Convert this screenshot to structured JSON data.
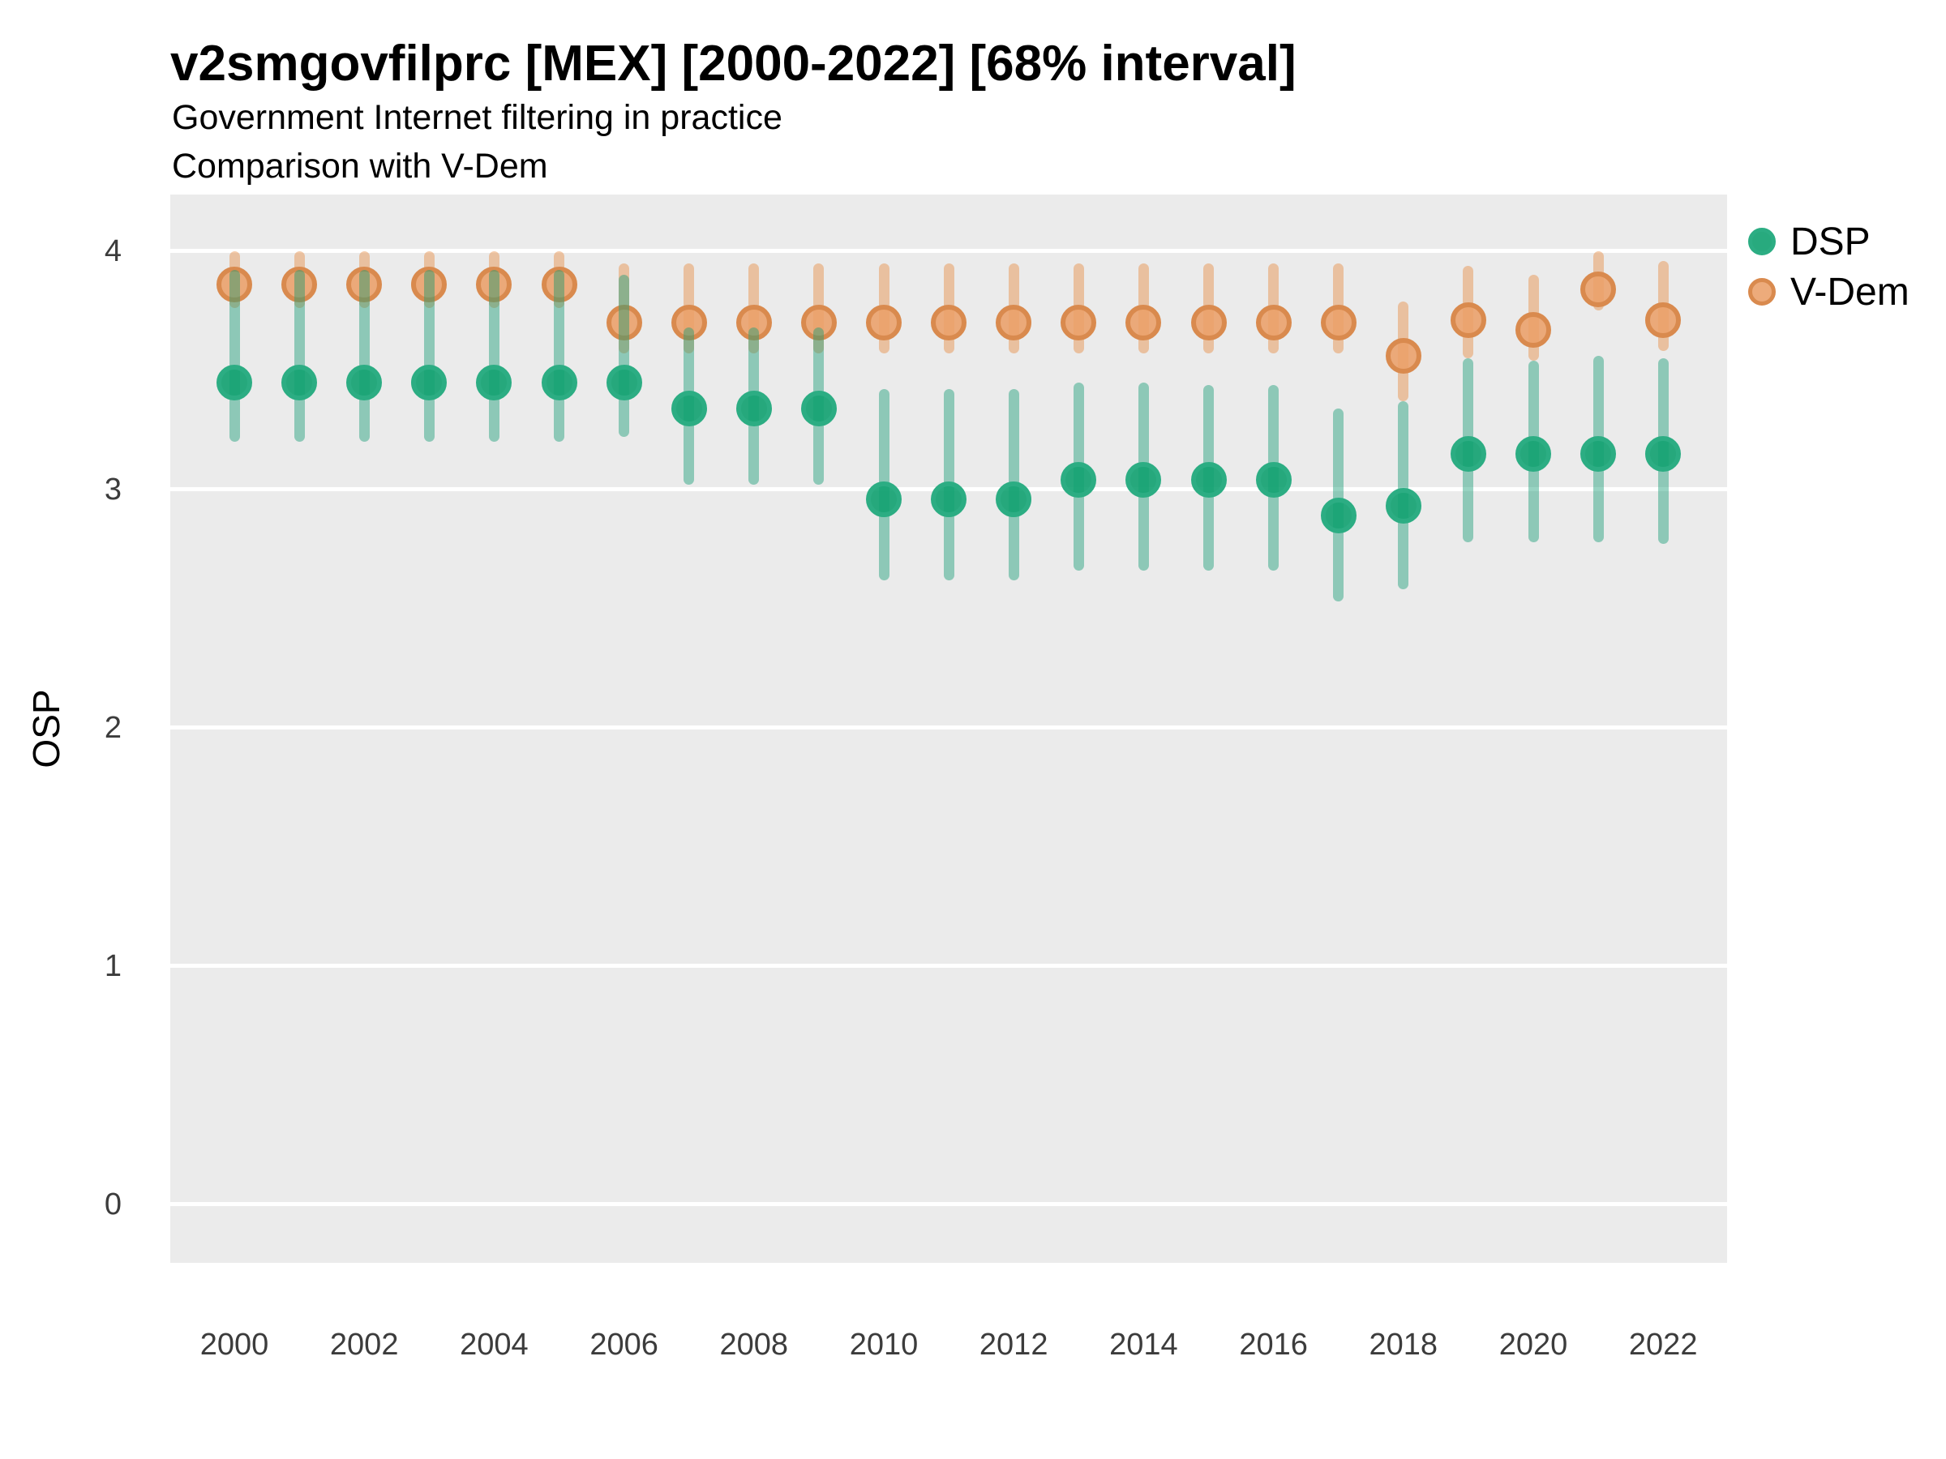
{
  "header": {
    "title": "v2smgovfilprc [MEX] [2000-2022] [68% interval]",
    "subtitle_line1": "Government Internet filtering in practice",
    "subtitle_line2": "Comparison with V-Dem"
  },
  "colors": {
    "panel_background": "#EBEBEB",
    "gridline": "#FFFFFF",
    "dsp_bar": "rgba(27,158,119,0.45)",
    "dsp_point_fill": "rgba(17,161,112,0.9)",
    "dsp_point_ring": "#2CAD83",
    "vdem_bar": "rgba(230,140,66,0.45)",
    "vdem_point_fill": "rgba(234,159,105,0.88)",
    "vdem_point_ring": "#D98A4E",
    "axis_text": "#3C3C3C"
  },
  "chart_data": {
    "type": "pointrange",
    "title": "v2smgovfilprc [MEX] [2000-2022] [68% interval]",
    "subtitle": [
      "Government Internet filtering in practice",
      "Comparison with V-Dem"
    ],
    "xlabel": "",
    "ylabel": "OSP",
    "interval": "68%",
    "ylim": [
      0,
      4
    ],
    "ylim_display": [
      -0.246,
      4.238
    ],
    "y_ticks": [
      4,
      3,
      2,
      1,
      0
    ],
    "x_ticks": [
      2000,
      2002,
      2004,
      2006,
      2008,
      2010,
      2012,
      2014,
      2016,
      2018,
      2020,
      2022
    ],
    "grid": "major-horizontal-only",
    "legend_position": "right-top",
    "legend": [
      {
        "label": "DSP",
        "fill_key": "dsp_point_fill",
        "ring_key": "dsp_point_ring"
      },
      {
        "label": "V-Dem",
        "fill_key": "vdem_point_fill",
        "ring_key": "vdem_point_ring"
      }
    ],
    "series": {
      "dsp": [
        {
          "year": 2000,
          "est": 3.45,
          "lo": 3.2,
          "hi": 3.92
        },
        {
          "year": 2001,
          "est": 3.45,
          "lo": 3.2,
          "hi": 3.92
        },
        {
          "year": 2002,
          "est": 3.45,
          "lo": 3.2,
          "hi": 3.92
        },
        {
          "year": 2003,
          "est": 3.45,
          "lo": 3.2,
          "hi": 3.92
        },
        {
          "year": 2004,
          "est": 3.45,
          "lo": 3.2,
          "hi": 3.92
        },
        {
          "year": 2005,
          "est": 3.45,
          "lo": 3.2,
          "hi": 3.92
        },
        {
          "year": 2006,
          "est": 3.45,
          "lo": 3.22,
          "hi": 3.9
        },
        {
          "year": 2007,
          "est": 3.34,
          "lo": 3.02,
          "hi": 3.68
        },
        {
          "year": 2008,
          "est": 3.34,
          "lo": 3.02,
          "hi": 3.68
        },
        {
          "year": 2009,
          "est": 3.34,
          "lo": 3.02,
          "hi": 3.68
        },
        {
          "year": 2010,
          "est": 2.96,
          "lo": 2.62,
          "hi": 3.42
        },
        {
          "year": 2011,
          "est": 2.96,
          "lo": 2.62,
          "hi": 3.42
        },
        {
          "year": 2012,
          "est": 2.96,
          "lo": 2.62,
          "hi": 3.42
        },
        {
          "year": 2013,
          "est": 3.04,
          "lo": 2.66,
          "hi": 3.45
        },
        {
          "year": 2014,
          "est": 3.04,
          "lo": 2.66,
          "hi": 3.45
        },
        {
          "year": 2015,
          "est": 3.04,
          "lo": 2.66,
          "hi": 3.44
        },
        {
          "year": 2016,
          "est": 3.04,
          "lo": 2.66,
          "hi": 3.44
        },
        {
          "year": 2017,
          "est": 2.89,
          "lo": 2.53,
          "hi": 3.34
        },
        {
          "year": 2018,
          "est": 2.93,
          "lo": 2.58,
          "hi": 3.37
        },
        {
          "year": 2019,
          "est": 3.15,
          "lo": 2.78,
          "hi": 3.55
        },
        {
          "year": 2020,
          "est": 3.15,
          "lo": 2.78,
          "hi": 3.54
        },
        {
          "year": 2021,
          "est": 3.15,
          "lo": 2.78,
          "hi": 3.56
        },
        {
          "year": 2022,
          "est": 3.15,
          "lo": 2.77,
          "hi": 3.55
        }
      ],
      "vdem": [
        {
          "year": 2000,
          "est": 3.86,
          "lo": 3.76,
          "hi": 4.0
        },
        {
          "year": 2001,
          "est": 3.86,
          "lo": 3.76,
          "hi": 4.0
        },
        {
          "year": 2002,
          "est": 3.86,
          "lo": 3.76,
          "hi": 4.0
        },
        {
          "year": 2003,
          "est": 3.86,
          "lo": 3.76,
          "hi": 4.0
        },
        {
          "year": 2004,
          "est": 3.86,
          "lo": 3.76,
          "hi": 4.0
        },
        {
          "year": 2005,
          "est": 3.86,
          "lo": 3.76,
          "hi": 4.0
        },
        {
          "year": 2006,
          "est": 3.7,
          "lo": 3.57,
          "hi": 3.95
        },
        {
          "year": 2007,
          "est": 3.7,
          "lo": 3.57,
          "hi": 3.95
        },
        {
          "year": 2008,
          "est": 3.7,
          "lo": 3.57,
          "hi": 3.95
        },
        {
          "year": 2009,
          "est": 3.7,
          "lo": 3.57,
          "hi": 3.95
        },
        {
          "year": 2010,
          "est": 3.7,
          "lo": 3.57,
          "hi": 3.95
        },
        {
          "year": 2011,
          "est": 3.7,
          "lo": 3.57,
          "hi": 3.95
        },
        {
          "year": 2012,
          "est": 3.7,
          "lo": 3.57,
          "hi": 3.95
        },
        {
          "year": 2013,
          "est": 3.7,
          "lo": 3.57,
          "hi": 3.95
        },
        {
          "year": 2014,
          "est": 3.7,
          "lo": 3.57,
          "hi": 3.95
        },
        {
          "year": 2015,
          "est": 3.7,
          "lo": 3.57,
          "hi": 3.95
        },
        {
          "year": 2016,
          "est": 3.7,
          "lo": 3.57,
          "hi": 3.95
        },
        {
          "year": 2017,
          "est": 3.7,
          "lo": 3.57,
          "hi": 3.95
        },
        {
          "year": 2018,
          "est": 3.56,
          "lo": 3.37,
          "hi": 3.79
        },
        {
          "year": 2019,
          "est": 3.71,
          "lo": 3.55,
          "hi": 3.94
        },
        {
          "year": 2020,
          "est": 3.67,
          "lo": 3.54,
          "hi": 3.9
        },
        {
          "year": 2021,
          "est": 3.84,
          "lo": 3.75,
          "hi": 4.0
        },
        {
          "year": 2022,
          "est": 3.71,
          "lo": 3.58,
          "hi": 3.96
        }
      ]
    }
  }
}
